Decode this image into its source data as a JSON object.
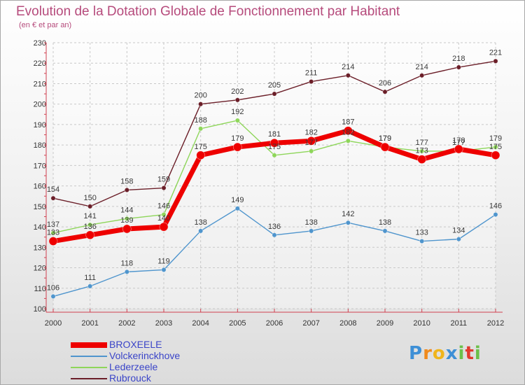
{
  "chart_data": {
    "type": "line",
    "title": "Evolution de la Dotation Globale de Fonctionnement par Habitant",
    "subtitle": "(en € et par an)",
    "xlabel": "",
    "ylabel": "",
    "ylim": [
      100,
      230
    ],
    "yticks": [
      100,
      110,
      120,
      130,
      140,
      150,
      160,
      170,
      180,
      190,
      200,
      210,
      220,
      230
    ],
    "grid": true,
    "x": [
      "2000",
      "2001",
      "2002",
      "2003",
      "2004",
      "2005",
      "2006",
      "2007",
      "2008",
      "2009",
      "2010",
      "2011",
      "2012"
    ],
    "series": [
      {
        "name": "BROXEELE",
        "color": "#ee0000",
        "values": [
          133,
          136,
          139,
          140,
          175,
          179,
          181,
          182,
          187,
          179,
          173,
          178,
          175
        ]
      },
      {
        "name": "Volckerinckhove",
        "color": "#4f95cd",
        "values": [
          106,
          111,
          118,
          119,
          138,
          149,
          136,
          138,
          142,
          138,
          133,
          134,
          146
        ]
      },
      {
        "name": "Lederzeele",
        "color": "#8ed65a",
        "values": [
          137,
          141,
          144,
          146,
          188,
          192,
          175,
          177,
          182,
          179,
          177,
          177,
          179
        ]
      },
      {
        "name": "Rubrouck",
        "color": "#6b1e28",
        "values": [
          154,
          150,
          158,
          159,
          200,
          202,
          205,
          211,
          214,
          206,
          214,
          218,
          221
        ]
      }
    ]
  },
  "logo": {
    "letters": [
      "P",
      "r",
      "o",
      "x",
      "i",
      "t",
      "i"
    ],
    "colors": [
      "#3d8fd6",
      "#f08a1c",
      "#f0b51c",
      "#3d8fd6",
      "#6cc04a",
      "#e23a2e",
      "#6cc04a"
    ]
  }
}
